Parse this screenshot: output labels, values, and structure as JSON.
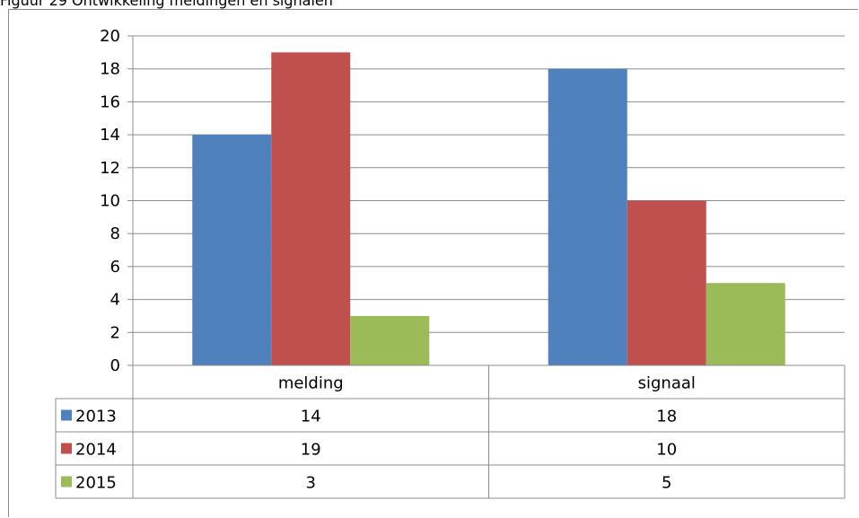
{
  "caption": "Figuur 29 Ontwikkeling meldingen en signalen",
  "chart_data": {
    "type": "bar",
    "categories": [
      "melding",
      "signaal"
    ],
    "series": [
      {
        "name": "2013",
        "values": [
          14,
          18
        ],
        "color": "#4f81bd"
      },
      {
        "name": "2014",
        "values": [
          19,
          10
        ],
        "color": "#c0504d"
      },
      {
        "name": "2015",
        "values": [
          3,
          5
        ],
        "color": "#9bbb59"
      }
    ],
    "ylim": [
      0,
      20
    ],
    "y_ticks": [
      0,
      2,
      4,
      6,
      8,
      10,
      12,
      14,
      16,
      18,
      20
    ],
    "grid": true,
    "legend": "data-table-left",
    "data_table": true
  }
}
